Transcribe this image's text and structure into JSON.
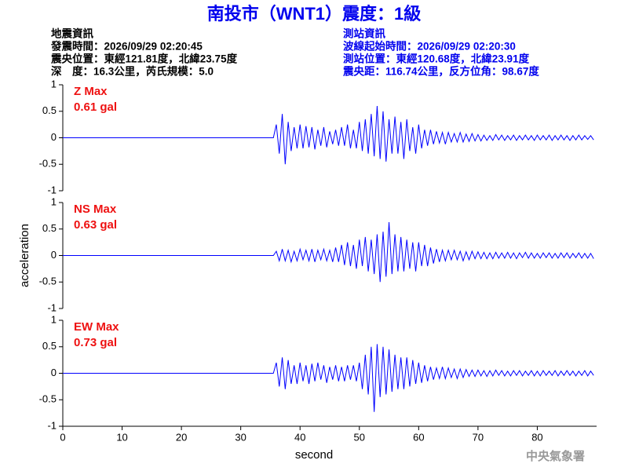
{
  "header": {
    "title": "南投市（WNT1）震度：1級",
    "left": [
      "地震資訊",
      "發震時間：2026/09/29 02:20:45",
      "震央位置：東經121.81度，北緯23.75度",
      "深　度：16.3公里，芮氏規模：5.0"
    ],
    "right": [
      "測站資訊",
      "波線起始時間：2026/09/29 02:20:30",
      "測站位置：東經120.68度，北緯23.91度",
      "震央距：116.74公里，反方位角：98.67度"
    ]
  },
  "footer": "中央氣象署",
  "chart_data": [
    {
      "type": "line",
      "annotations": [
        "Z Max",
        "0.61 gal"
      ],
      "annotation_color": "#ee1111",
      "color": "#0000ff",
      "xlim": [
        0,
        90
      ],
      "ylim": [
        -1,
        1
      ],
      "yticks": [
        -1,
        -0.5,
        0,
        0.5,
        1
      ],
      "x": [
        0,
        35.5,
        36,
        36.5,
        37,
        37.5,
        38,
        38.5,
        39,
        39.5,
        40,
        40.5,
        41,
        41.5,
        42,
        42.5,
        43,
        43.5,
        44,
        44.5,
        45,
        45.5,
        46,
        46.5,
        47,
        47.5,
        48,
        48.5,
        49,
        49.5,
        50,
        50.5,
        51,
        51.5,
        52,
        52.5,
        53,
        53.5,
        54,
        54.5,
        55,
        55.5,
        56,
        56.5,
        57,
        57.5,
        58,
        58.5,
        59,
        59.5,
        60,
        60.5,
        61,
        61.5,
        62,
        62.5,
        63,
        63.5,
        64,
        64.5,
        65,
        65.5,
        66,
        66.5,
        67,
        67.5,
        68,
        68.5,
        69,
        69.5,
        70,
        70.5,
        71,
        71.5,
        72,
        72.5,
        73,
        73.5,
        74,
        74.5,
        75,
        75.5,
        76,
        76.5,
        77,
        77.5,
        78,
        78.5,
        79,
        79.5,
        80,
        80.5,
        81,
        81.5,
        82,
        82.5,
        83,
        83.5,
        84,
        84.5,
        85,
        85.5,
        86,
        86.5,
        87,
        87.5,
        88,
        88.5,
        89,
        89.5
      ],
      "values": [
        0,
        0,
        0.25,
        -0.3,
        0.45,
        -0.5,
        0.3,
        -0.25,
        0.2,
        -0.2,
        0.25,
        -0.2,
        0.22,
        -0.18,
        0.2,
        -0.22,
        0.15,
        -0.15,
        0.2,
        -0.18,
        0.12,
        -0.12,
        0.15,
        -0.15,
        0.2,
        -0.15,
        0.25,
        -0.2,
        0.15,
        -0.2,
        0.3,
        -0.25,
        0.35,
        -0.3,
        0.45,
        -0.35,
        0.6,
        -0.4,
        0.5,
        -0.45,
        0.35,
        -0.3,
        0.4,
        -0.3,
        0.3,
        -0.4,
        0.35,
        -0.25,
        0.2,
        -0.3,
        0.25,
        -0.2,
        0.15,
        -0.15,
        0.15,
        -0.12,
        0.12,
        -0.1,
        0.1,
        -0.12,
        0.1,
        -0.08,
        0.08,
        -0.08,
        0.1,
        -0.08,
        0.07,
        -0.07,
        0.08,
        -0.06,
        0.06,
        -0.06,
        0.05,
        -0.05,
        0.04,
        -0.05,
        0.06,
        -0.04,
        0.05,
        -0.05,
        0.04,
        -0.04,
        0.05,
        -0.05,
        0.04,
        -0.04,
        0.05,
        -0.04,
        0.04,
        -0.05,
        0.05,
        -0.04,
        0.04,
        -0.04,
        0.05,
        -0.05,
        0.04,
        -0.04,
        0.05,
        -0.04,
        0.04,
        -0.05,
        0.04,
        -0.04,
        0.05,
        -0.04,
        0.04,
        -0.03,
        0.04,
        -0.04
      ]
    },
    {
      "type": "line",
      "annotations": [
        "NS Max",
        "0.63 gal"
      ],
      "annotation_color": "#ee1111",
      "color": "#0000ff",
      "ylabel": "acceleration",
      "xlim": [
        0,
        90
      ],
      "ylim": [
        -1,
        1
      ],
      "yticks": [
        -1,
        -0.5,
        0,
        0.5,
        1
      ],
      "x": [
        0,
        35.5,
        36,
        36.5,
        37,
        37.5,
        38,
        38.5,
        39,
        39.5,
        40,
        40.5,
        41,
        41.5,
        42,
        42.5,
        43,
        43.5,
        44,
        44.5,
        45,
        45.5,
        46,
        46.5,
        47,
        47.5,
        48,
        48.5,
        49,
        49.5,
        50,
        50.5,
        51,
        51.5,
        52,
        52.5,
        53,
        53.5,
        54,
        54.5,
        55,
        55.5,
        56,
        56.5,
        57,
        57.5,
        58,
        58.5,
        59,
        59.5,
        60,
        60.5,
        61,
        61.5,
        62,
        62.5,
        63,
        63.5,
        64,
        64.5,
        65,
        65.5,
        66,
        66.5,
        67,
        67.5,
        68,
        68.5,
        69,
        69.5,
        70,
        70.5,
        71,
        71.5,
        72,
        72.5,
        73,
        73.5,
        74,
        74.5,
        75,
        75.5,
        76,
        76.5,
        77,
        77.5,
        78,
        78.5,
        79,
        79.5,
        80,
        80.5,
        81,
        81.5,
        82,
        82.5,
        83,
        83.5,
        84,
        84.5,
        85,
        85.5,
        86,
        86.5,
        87,
        87.5,
        88,
        88.5,
        89,
        89.5
      ],
      "values": [
        0,
        0,
        0.08,
        -0.1,
        0.12,
        -0.1,
        0.1,
        -0.12,
        0.08,
        -0.1,
        0.12,
        -0.08,
        0.1,
        -0.1,
        0.12,
        -0.12,
        0.1,
        -0.08,
        0.12,
        -0.1,
        0.1,
        -0.12,
        0.15,
        -0.12,
        0.2,
        -0.18,
        0.25,
        -0.2,
        0.2,
        -0.25,
        0.3,
        -0.2,
        0.35,
        -0.3,
        0.3,
        -0.35,
        0.4,
        -0.5,
        0.45,
        -0.4,
        0.63,
        -0.35,
        0.4,
        -0.3,
        0.35,
        -0.3,
        0.3,
        -0.25,
        0.25,
        -0.3,
        0.25,
        -0.2,
        0.2,
        -0.2,
        0.15,
        -0.15,
        0.12,
        -0.12,
        0.1,
        -0.1,
        0.1,
        -0.08,
        0.1,
        -0.08,
        0.08,
        -0.1,
        0.07,
        -0.08,
        0.08,
        -0.06,
        0.07,
        -0.06,
        0.06,
        -0.06,
        0.05,
        -0.06,
        0.06,
        -0.05,
        0.05,
        -0.05,
        0.06,
        -0.05,
        0.05,
        -0.06,
        0.05,
        -0.04,
        0.06,
        -0.05,
        0.05,
        -0.05,
        0.04,
        -0.05,
        0.05,
        -0.04,
        0.05,
        -0.05,
        0.04,
        -0.05,
        0.05,
        -0.04,
        0.05,
        -0.05,
        0.04,
        -0.04,
        0.05,
        -0.05,
        0.04,
        -0.05,
        0.04,
        -0.06
      ]
    },
    {
      "type": "line",
      "annotations": [
        "EW Max",
        "0.73 gal"
      ],
      "annotation_color": "#ee1111",
      "color": "#0000ff",
      "xlabel": "second",
      "xlim": [
        0,
        90
      ],
      "xticks": [
        0,
        10,
        20,
        30,
        40,
        50,
        60,
        70,
        80
      ],
      "ylim": [
        -1,
        1
      ],
      "yticks": [
        -1,
        -0.5,
        0,
        0.5,
        1
      ],
      "x": [
        0,
        35.5,
        36,
        36.5,
        37,
        37.5,
        38,
        38.5,
        39,
        39.5,
        40,
        40.5,
        41,
        41.5,
        42,
        42.5,
        43,
        43.5,
        44,
        44.5,
        45,
        45.5,
        46,
        46.5,
        47,
        47.5,
        48,
        48.5,
        49,
        49.5,
        50,
        50.5,
        51,
        51.5,
        52,
        52.5,
        53,
        53.5,
        54,
        54.5,
        55,
        55.5,
        56,
        56.5,
        57,
        57.5,
        58,
        58.5,
        59,
        59.5,
        60,
        60.5,
        61,
        61.5,
        62,
        62.5,
        63,
        63.5,
        64,
        64.5,
        65,
        65.5,
        66,
        66.5,
        67,
        67.5,
        68,
        68.5,
        69,
        69.5,
        70,
        70.5,
        71,
        71.5,
        72,
        72.5,
        73,
        73.5,
        74,
        74.5,
        75,
        75.5,
        76,
        76.5,
        77,
        77.5,
        78,
        78.5,
        79,
        79.5,
        80,
        80.5,
        81,
        81.5,
        82,
        82.5,
        83,
        83.5,
        84,
        84.5,
        85,
        85.5,
        86,
        86.5,
        87,
        87.5,
        88,
        88.5,
        89,
        89.5
      ],
      "values": [
        0,
        0,
        0.2,
        -0.25,
        0.3,
        -0.3,
        0.25,
        -0.2,
        0.15,
        -0.2,
        0.2,
        -0.15,
        0.15,
        -0.2,
        0.18,
        -0.15,
        0.2,
        -0.12,
        0.15,
        -0.18,
        0.12,
        -0.12,
        0.15,
        -0.15,
        0.12,
        -0.15,
        0.15,
        -0.12,
        0.15,
        -0.15,
        0.2,
        -0.3,
        0.35,
        -0.4,
        0.5,
        -0.73,
        0.55,
        -0.45,
        0.5,
        -0.4,
        0.45,
        -0.35,
        0.35,
        -0.3,
        0.3,
        -0.3,
        0.3,
        -0.25,
        0.25,
        -0.2,
        0.2,
        -0.18,
        0.15,
        -0.15,
        0.12,
        -0.12,
        0.1,
        -0.1,
        0.12,
        -0.1,
        0.1,
        -0.08,
        0.08,
        -0.1,
        0.08,
        -0.08,
        0.07,
        -0.06,
        0.06,
        -0.06,
        0.06,
        -0.05,
        0.05,
        -0.06,
        0.05,
        -0.05,
        0.06,
        -0.04,
        0.05,
        -0.05,
        0.04,
        -0.05,
        0.05,
        -0.04,
        0.05,
        -0.05,
        0.04,
        -0.04,
        0.05,
        -0.05,
        0.04,
        -0.05,
        0.05,
        -0.04,
        0.04,
        -0.04,
        0.05,
        -0.05,
        0.04,
        -0.04,
        0.05,
        -0.04,
        0.04,
        -0.05,
        0.04,
        -0.04,
        0.05,
        -0.05,
        0.04,
        -0.04
      ]
    }
  ]
}
